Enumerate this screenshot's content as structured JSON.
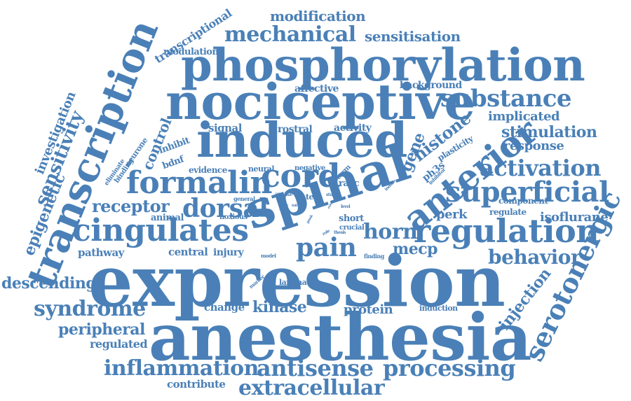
{
  "colors": {
    "word": "#4a80b7",
    "background": "#ffffff"
  },
  "words": {
    "expression": "expression",
    "anesthesia": "anesthesia",
    "phosphorylation": "phosphorylation",
    "nociceptive": "nociceptive",
    "induced": "induced",
    "spinal": "spinal",
    "transcription": "transcription",
    "regulation": "regulation",
    "anterior": "anterior",
    "cingulates": "cingulates",
    "formalin": "formalin",
    "cord": "cord",
    "superficial": "superficial",
    "serotonergic": "serotonergic",
    "mechanical": "mechanical",
    "substance": "substance",
    "dorsal": "dorsal",
    "activation": "activation",
    "antisense": "antisense",
    "inflammation": "inflammation",
    "processing": "processing",
    "extracellular": "extracellular",
    "syndrome": "syndrome",
    "pain": "pain",
    "horn": "horn",
    "receptor": "receptor",
    "behavior": "behavior",
    "stimulation": "stimulation",
    "histone": "histone",
    "gene": "gene",
    "sensitivity": "sensitivity",
    "epigenetic": "epigenetic",
    "investigation": "investigation",
    "control": "control",
    "peripheral": "peripheral",
    "descending": "descending",
    "modification": "modification",
    "sensitisation": "sensitisation",
    "transcriptional": "transcriptional",
    "modulation": "modulation",
    "injection": "injection",
    "mecp": "mecp",
    "kinase": "kinase",
    "protein": "protein",
    "isoflurane": "isoflurane",
    "response": "response",
    "implicated": "implicated",
    "perk": "perk",
    "regulated": "regulated",
    "contribute": "contribute",
    "pathway": "pathway",
    "central": "central",
    "injury": "injury",
    "change": "change",
    "signal": "signal",
    "rostral": "rostral",
    "activity": "activity",
    "affective": "affective",
    "background": "background",
    "component": "component",
    "regulate": "regulate",
    "inhibit": "inhibit",
    "bdnf": "bdnf",
    "evidence": "evidence",
    "neural": "neural",
    "negative": "negative",
    "animal": "animal",
    "noxious": "noxious",
    "short": "short",
    "crucial": "crucial",
    "laminae": "laminae",
    "induction": "induction",
    "racc": "racc",
    "ph3s": "ph3s",
    "plasticity": "plasticity",
    "term": "term",
    "neurone": "neurone",
    "binding": "binding",
    "eliminate": "eliminate",
    "test": "test",
    "awake": "awake",
    "general": "general",
    "finding": "finding",
    "model": "model",
    "marker": "marker",
    "study": "study",
    "inhibitor": "inhibitor",
    "induce": "induce",
    "thesis": "thesis",
    "role": "role",
    "level": "level",
    "full": "full",
    "event": "event",
    "pmsk": "pmsk",
    "rett": "rett"
  }
}
